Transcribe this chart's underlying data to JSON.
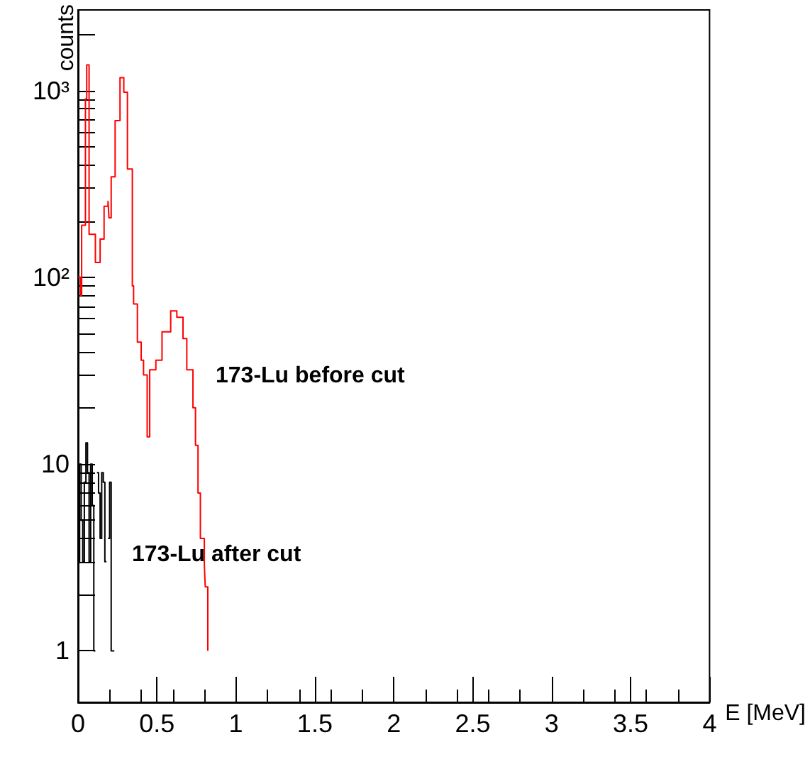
{
  "chart_data": {
    "type": "step",
    "xlabel": "E [MeV]",
    "ylabel": "counts",
    "log": "y",
    "grid": false,
    "marker": "none",
    "line_style": "solid",
    "xlim": [
      0,
      4
    ],
    "xticks": [
      0,
      0.5,
      1,
      1.5,
      2,
      2.5,
      3,
      3.5,
      4
    ],
    "ylim": [
      0.53,
      2700
    ],
    "yticks": [
      1,
      {
        "value": 2,
        "label": null
      },
      {
        "value": 3,
        "label": null
      },
      {
        "value": 4,
        "label": null
      },
      {
        "value": 5,
        "label": null
      },
      {
        "value": 6,
        "label": null
      },
      {
        "value": 7,
        "label": null
      },
      {
        "value": 8,
        "label": null
      },
      {
        "value": 9,
        "label": null
      },
      10,
      {
        "value": 20,
        "label": null
      },
      {
        "value": 30,
        "label": null
      },
      {
        "value": 40,
        "label": null
      },
      {
        "value": 50,
        "label": null
      },
      {
        "value": 60,
        "label": null
      },
      {
        "value": 70,
        "label": null
      },
      {
        "value": 80,
        "label": null
      },
      {
        "value": 90,
        "label": null
      },
      {
        "value": 100,
        "label": "10²"
      },
      {
        "value": 200,
        "label": null
      },
      {
        "value": 300,
        "label": null
      },
      {
        "value": 400,
        "label": null
      },
      {
        "value": 500,
        "label": null
      },
      {
        "value": 600,
        "label": null
      },
      {
        "value": 700,
        "label": null
      },
      {
        "value": 800,
        "label": null
      },
      {
        "value": 900,
        "label": null
      },
      {
        "value": 1000,
        "label": "10³"
      },
      {
        "value": 2000,
        "label": null
      }
    ],
    "series": [
      {
        "color": "#ff0000",
        "x": [
          0,
          0.016,
          0.023,
          0.047,
          0.055,
          0.07,
          0.11,
          0.14,
          0.165,
          0.19,
          0.196,
          0.21,
          0.235,
          0.266,
          0.29,
          0.313,
          0.344,
          0.352,
          0.376,
          0.4,
          0.415,
          0.438,
          0.454,
          0.493,
          0.532,
          0.587,
          0.626,
          0.665,
          0.689,
          0.728,
          0.744,
          0.76,
          0.775,
          0.8,
          0.806,
          0.822
        ],
        "values": [
          100,
          80,
          190,
          900,
          1370,
          170,
          120,
          160,
          240,
          255,
          208,
          345,
          690,
          1170,
          980,
          380,
          90,
          72,
          45,
          36,
          30,
          14,
          32,
          36,
          51,
          66,
          61,
          47,
          32,
          20,
          12.6,
          7,
          4,
          2.9,
          2.2,
          1
        ]
      },
      {
        "color": "#000000",
        "x": [
          0,
          0.01,
          0.02,
          0.03,
          0.04,
          0.05,
          0.06,
          0.07,
          0.08,
          0.09,
          0.1,
          0.11,
          0.12,
          0.13,
          0.14,
          0.15,
          0.16,
          0.17,
          0.18,
          0.19,
          0.2,
          0.21,
          0.22,
          0.23
        ],
        "values": [
          3,
          10,
          5,
          3,
          8,
          13,
          9,
          3,
          10,
          6,
          1,
          null,
          9,
          7,
          4,
          9,
          8,
          3,
          null,
          4,
          8,
          1,
          1,
          1
        ]
      }
    ],
    "annotations": [
      "173-Lu before cut",
      "173-Lu after cut"
    ]
  }
}
